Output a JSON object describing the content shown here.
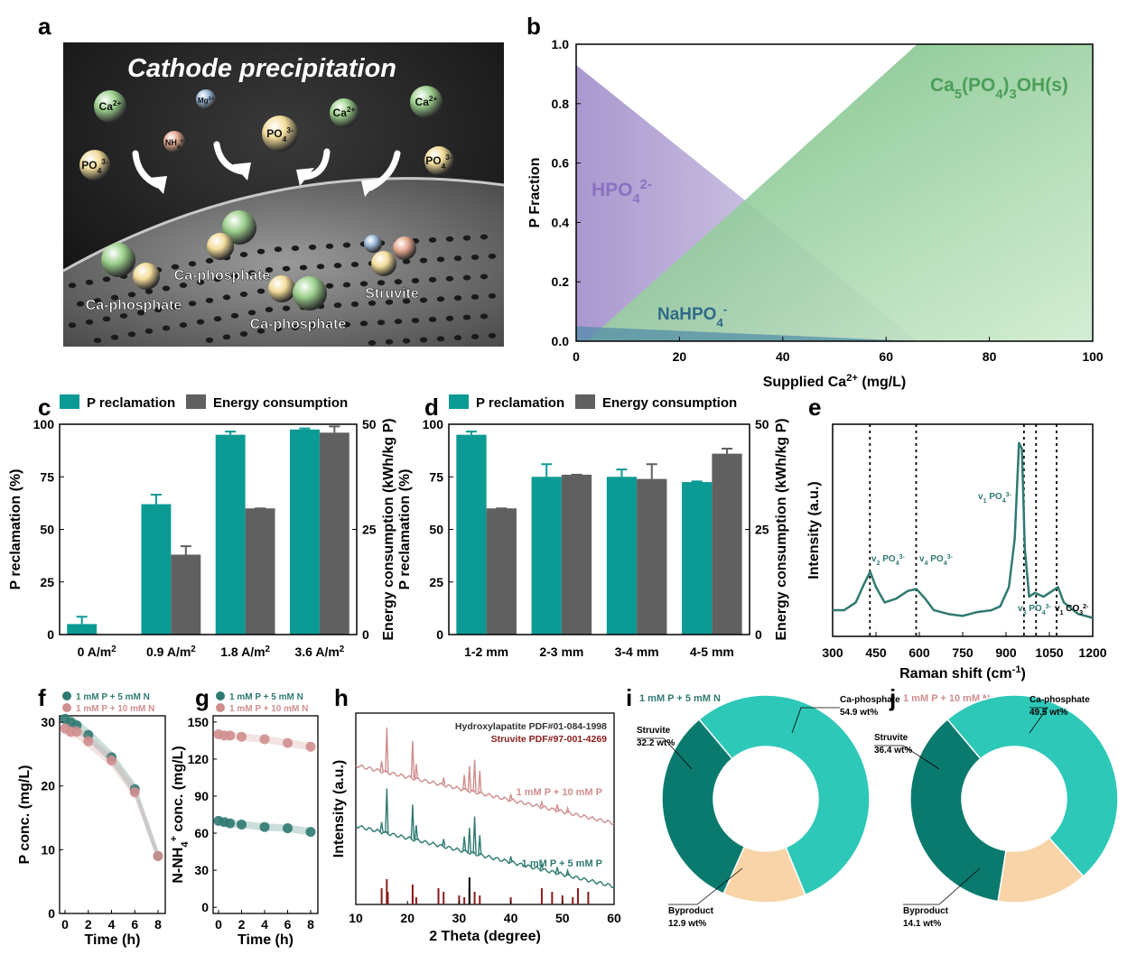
{
  "colors": {
    "teal": "#0b9a94",
    "gray": "#606060",
    "green": "#5caf6c",
    "purple": "#9a86c6",
    "blue": "#4f8aa8",
    "pink": "#d08e8e",
    "darkteal": "#2f7a72",
    "ca": "#2ec8b8",
    "str": "#0b7a6e",
    "byp": "#f8d4a8",
    "xrdGreen": "#2f7a72",
    "xrdRed": "#8a1a1a"
  },
  "a": {
    "letter": "a",
    "title": "Cathode precipitation",
    "ions": [
      "Ca2+",
      "Mg2+",
      "NH4+",
      "PO43-",
      "Ca2+",
      "Ca2+",
      "PO43-",
      "PO43-"
    ],
    "labels": [
      "Ca-phosphate",
      "Ca-phosphate",
      "Ca-phosphate",
      "Struvite"
    ]
  },
  "b": {
    "letter": "b",
    "ylabel": "P Fraction",
    "xlabel": "Supplied Ca2+ (mg/L)",
    "series_labels": [
      "HPO42-",
      "NaHPO4-",
      "Ca5(PO4)3OH(s)"
    ],
    "xticks": [
      "0",
      "20",
      "40",
      "60",
      "80",
      "100"
    ],
    "yticks": [
      "0.0",
      "0.2",
      "0.4",
      "0.6",
      "0.8",
      "1.0"
    ]
  },
  "c": {
    "letter": "c",
    "legend": [
      "P reclamation",
      "Energy consumption"
    ],
    "ylabel_left": "P reclamation (%)",
    "ylabel_right": "Energy consumption (kWh/kg P)",
    "categories": [
      "0 A/m2",
      "0.9 A/m2",
      "1.8 A/m2",
      "3.6 A/m2"
    ],
    "yticks_left": [
      "0",
      "25",
      "50",
      "75",
      "100"
    ],
    "yticks_right": [
      "0",
      "25",
      "50"
    ]
  },
  "d": {
    "letter": "d",
    "legend": [
      "P reclamation",
      "Energy consumption"
    ],
    "ylabel_left": "P reclamation (%)",
    "ylabel_right": "Energy consumption (kWh/kg P)",
    "categories": [
      "1-2 mm",
      "2-3 mm",
      "3-4 mm",
      "4-5 mm"
    ],
    "yticks_left": [
      "0",
      "25",
      "50",
      "75",
      "100"
    ],
    "yticks_right": [
      "0",
      "25",
      "50"
    ]
  },
  "e": {
    "letter": "e",
    "ylabel": "Intensity (a.u.)",
    "xlabel": "Raman shift (cm-1)",
    "xticks": [
      "300",
      "450",
      "600",
      "750",
      "900",
      "1050",
      "1200"
    ],
    "peaks": [
      "v2 PO43-",
      "v4 PO43-",
      "v1 PO43-",
      "v3 PO43-",
      "v1 CO32-"
    ]
  },
  "f": {
    "letter": "f",
    "legend": [
      "1 mM P + 5 mM N",
      "1 mM P + 10 mM N"
    ],
    "ylabel": "P conc. (mg/L)",
    "xlabel": "Time (h)",
    "xticks": [
      "0",
      "2",
      "4",
      "6",
      "8"
    ],
    "yticks": [
      "0",
      "10",
      "20",
      "30"
    ]
  },
  "g": {
    "letter": "g",
    "legend": [
      "1 mM P + 5 mM N",
      "1 mM P + 10 mM N"
    ],
    "ylabel": "N-NH4+ conc. (mg/L)",
    "xlabel": "Time (h)",
    "xticks": [
      "0",
      "2",
      "4",
      "6",
      "8"
    ],
    "yticks": [
      "0",
      "30",
      "60",
      "90",
      "120",
      "150"
    ]
  },
  "h": {
    "letter": "h",
    "ylabel": "Intensity (a.u.)",
    "xlabel": "2 Theta (degree)",
    "xticks": [
      "10",
      "20",
      "30",
      "40",
      "50",
      "60"
    ],
    "refs": [
      "Hydroxylapatite PDF#01-084-1998",
      "Struvite PDF#97-001-4269"
    ],
    "samples": [
      "1 mM P + 10 mM P",
      "1 mM P + 5 mM P"
    ]
  },
  "i": {
    "letter": "i",
    "title": "1 mM P + 5 mM N",
    "labels": [
      "Ca-phosphate",
      "Struvite",
      "Byproduct"
    ],
    "values_text": [
      "54.9 wt%",
      "32.2 wt%",
      "12.9 wt%"
    ]
  },
  "j": {
    "letter": "j",
    "title": "1 mM P + 10 mM N",
    "labels": [
      "Ca-phosphate",
      "Struvite",
      "Byproduct"
    ],
    "values_text": [
      "49.5 wt%",
      "36.4 wt%",
      "14.1 wt%"
    ]
  },
  "chart_data": [
    {
      "panel": "b",
      "type": "area",
      "xlabel": "Supplied Ca2+ (mg/L)",
      "ylabel": "P Fraction",
      "xlim": [
        0,
        100
      ],
      "ylim": [
        0,
        1
      ],
      "series": [
        {
          "name": "HPO42-",
          "x": [
            0,
            33,
            66
          ],
          "y": [
            0.93,
            0.47,
            0.0
          ]
        },
        {
          "name": "NaHPO4-",
          "x": [
            0,
            66
          ],
          "y": [
            0.05,
            0.0
          ]
        },
        {
          "name": "Ca5(PO4)3OH(s)",
          "x": [
            2,
            33,
            66,
            100
          ],
          "y": [
            0.0,
            0.48,
            1.0,
            1.0
          ]
        }
      ]
    },
    {
      "panel": "c",
      "type": "bar",
      "categories": [
        "0 A/m2",
        "0.9 A/m2",
        "1.8 A/m2",
        "3.6 A/m2"
      ],
      "series": [
        {
          "name": "P reclamation",
          "axis": "left",
          "values": [
            5,
            62,
            95,
            97.5
          ],
          "errors": [
            3.5,
            4.5,
            1.5,
            0.5
          ]
        },
        {
          "name": "Energy consumption",
          "axis": "right",
          "values": [
            0,
            19,
            30,
            48
          ],
          "errors": [
            0,
            2,
            0,
            1.5
          ]
        }
      ],
      "ylim_left": [
        0,
        100
      ],
      "ylim_right": [
        0,
        50
      ]
    },
    {
      "panel": "d",
      "type": "bar",
      "categories": [
        "1-2 mm",
        "2-3 mm",
        "3-4 mm",
        "4-5 mm"
      ],
      "series": [
        {
          "name": "P reclamation",
          "axis": "left",
          "values": [
            95,
            75,
            75,
            72.5
          ],
          "errors": [
            1.5,
            6,
            3.5,
            0.3
          ]
        },
        {
          "name": "Energy consumption",
          "axis": "right",
          "values": [
            30,
            38,
            37,
            43
          ],
          "errors": [
            0,
            0,
            3.5,
            1.2
          ]
        }
      ],
      "ylim_left": [
        0,
        100
      ],
      "ylim_right": [
        0,
        50
      ]
    },
    {
      "panel": "e",
      "type": "line",
      "xlim": [
        300,
        1200
      ],
      "x": [
        300,
        340,
        380,
        410,
        430,
        450,
        480,
        520,
        560,
        590,
        620,
        650,
        700,
        750,
        800,
        850,
        880,
        910,
        930,
        945,
        955,
        965,
        980,
        1000,
        1030,
        1060,
        1080,
        1100,
        1150,
        1200
      ],
      "y": [
        0.08,
        0.08,
        0.12,
        0.22,
        0.28,
        0.2,
        0.12,
        0.14,
        0.18,
        0.19,
        0.14,
        0.08,
        0.06,
        0.05,
        0.07,
        0.08,
        0.1,
        0.2,
        0.45,
        0.95,
        0.92,
        0.4,
        0.15,
        0.17,
        0.15,
        0.18,
        0.2,
        0.12,
        0.06,
        0.04
      ],
      "peak_positions": [
        429,
        589,
        962,
        1004,
        1075
      ]
    },
    {
      "panel": "f",
      "type": "scatter",
      "x": [
        0,
        0.5,
        1,
        2,
        4,
        6,
        8
      ],
      "series": [
        {
          "name": "1 mM P + 5 mM N",
          "values": [
            30.5,
            30,
            29.5,
            28,
            24.5,
            19.5,
            9
          ]
        },
        {
          "name": "1 mM P + 10 mM N",
          "values": [
            29,
            28.5,
            28.5,
            27,
            24,
            19,
            9
          ]
        }
      ],
      "ylim": [
        0,
        31
      ]
    },
    {
      "panel": "g",
      "type": "scatter",
      "x": [
        0,
        0.5,
        1,
        2,
        4,
        6,
        8
      ],
      "series": [
        {
          "name": "1 mM P + 5 mM N",
          "values": [
            70,
            69,
            68,
            67,
            65,
            64,
            61
          ]
        },
        {
          "name": "1 mM P + 10 mM N",
          "values": [
            140,
            139,
            139,
            138,
            136,
            133,
            130
          ]
        }
      ],
      "ylim": [
        -5,
        155
      ]
    },
    {
      "panel": "h",
      "type": "line",
      "xlim": [
        10,
        60
      ],
      "series": [
        {
          "name": "1 mM P + 10 mM P",
          "peaks": [
            15,
            16,
            21,
            21.7,
            27,
            31,
            32,
            33,
            34,
            40,
            46,
            49,
            51
          ],
          "heights": [
            0.2,
            0.9,
            0.75,
            0.3,
            0.15,
            0.3,
            0.5,
            0.65,
            0.45,
            0.12,
            0.1,
            0.12,
            0.1
          ]
        },
        {
          "name": "1 mM P + 5 mM P",
          "peaks": [
            15,
            16,
            21,
            21.7,
            27,
            31,
            32,
            33,
            34,
            40,
            46,
            49,
            51
          ],
          "heights": [
            0.2,
            0.9,
            0.7,
            0.3,
            0.15,
            0.3,
            0.5,
            0.75,
            0.4,
            0.12,
            0.1,
            0.12,
            0.1
          ]
        }
      ],
      "ref_peaks": [
        15,
        16.2,
        21,
        21.7,
        26,
        27,
        30,
        31,
        32,
        33,
        34,
        40,
        46,
        48,
        50,
        52,
        53,
        55
      ]
    },
    {
      "panel": "i",
      "type": "pie",
      "labels": [
        "Ca-phosphate",
        "Struvite",
        "Byproduct"
      ],
      "values": [
        54.9,
        32.2,
        12.9
      ]
    },
    {
      "panel": "j",
      "type": "pie",
      "labels": [
        "Ca-phosphate",
        "Struvite",
        "Byproduct"
      ],
      "values": [
        49.5,
        36.4,
        14.1
      ]
    }
  ]
}
